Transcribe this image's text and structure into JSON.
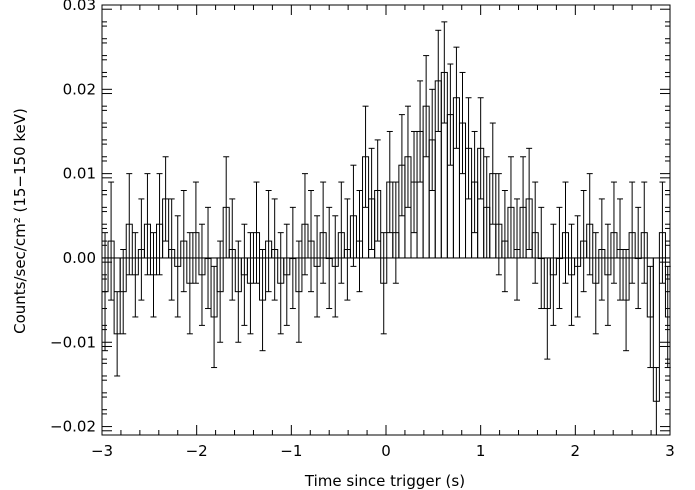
{
  "chart_data": {
    "type": "histogram-step-with-errorbars",
    "xlabel": "Time since trigger (s)",
    "ylabel": "Counts/sec/cm² (15−150 keV)",
    "xlim": [
      -3,
      3
    ],
    "ylim": [
      -0.021,
      0.03
    ],
    "bin_width": 0.064,
    "zero_line": true,
    "grid": false,
    "x_ticks": [
      {
        "value": -3,
        "label": "−3"
      },
      {
        "value": -2,
        "label": "−2"
      },
      {
        "value": -1,
        "label": "−1"
      },
      {
        "value": 0,
        "label": "0"
      },
      {
        "value": 1,
        "label": "1"
      },
      {
        "value": 2,
        "label": "2"
      },
      {
        "value": 3,
        "label": "3"
      }
    ],
    "y_ticks": [
      {
        "value": -0.02,
        "label": "−0.02"
      },
      {
        "value": -0.01,
        "label": "−0.01"
      },
      {
        "value": 0.0,
        "label": "0.00"
      },
      {
        "value": 0.01,
        "label": "0.01"
      },
      {
        "value": 0.02,
        "label": "0.02"
      },
      {
        "value": 0.03,
        "label": "0.03"
      }
    ],
    "x_start": -3.0,
    "values": [
      -0.004,
      0.002,
      -0.009,
      -0.004,
      0.004,
      -0.002,
      0.001,
      0.004,
      -0.002,
      0.004,
      0.007,
      0.001,
      -0.001,
      0.002,
      -0.003,
      0.003,
      -0.002,
      0.0,
      -0.007,
      -0.004,
      0.006,
      0.001,
      -0.004,
      -0.002,
      -0.003,
      0.003,
      -0.005,
      0.002,
      0.001,
      -0.003,
      -0.002,
      0.0,
      -0.004,
      0.004,
      0.002,
      -0.001,
      0.003,
      0.0,
      -0.001,
      0.003,
      0.001,
      0.005,
      0.002,
      0.012,
      0.007,
      0.008,
      -0.003,
      0.009,
      0.003,
      0.011,
      0.012,
      0.009,
      0.015,
      0.018,
      0.014,
      0.021,
      0.022,
      0.017,
      0.019,
      0.016,
      0.013,
      0.009,
      0.013,
      0.006,
      0.01,
      0.004,
      0.002,
      0.006,
      0.001,
      0.006,
      0.007,
      0.003,
      0.0,
      -0.006,
      -0.002,
      0.0,
      0.003,
      -0.002,
      -0.001,
      0.002,
      0.004,
      -0.003,
      0.001,
      -0.002,
      0.003,
      0.001,
      -0.005,
      0.003,
      0.0,
      0.003,
      -0.007,
      -0.017,
      0.003,
      -0.007,
      0.008,
      0.003
    ],
    "errors": [
      0.007,
      0.007,
      0.005,
      0.005,
      0.006,
      0.005,
      0.006,
      0.006,
      0.005,
      0.006,
      0.005,
      0.006,
      0.006,
      0.006,
      0.006,
      0.006,
      0.006,
      0.006,
      0.006,
      0.006,
      0.006,
      0.006,
      0.006,
      0.006,
      0.006,
      0.006,
      0.006,
      0.006,
      0.006,
      0.006,
      0.006,
      0.006,
      0.006,
      0.006,
      0.006,
      0.006,
      0.006,
      0.006,
      0.006,
      0.006,
      0.006,
      0.006,
      0.006,
      0.006,
      0.006,
      0.006,
      0.006,
      0.006,
      0.006,
      0.006,
      0.006,
      0.006,
      0.006,
      0.006,
      0.006,
      0.006,
      0.006,
      0.006,
      0.006,
      0.006,
      0.006,
      0.006,
      0.006,
      0.006,
      0.006,
      0.006,
      0.006,
      0.006,
      0.006,
      0.006,
      0.006,
      0.006,
      0.006,
      0.006,
      0.006,
      0.006,
      0.006,
      0.006,
      0.006,
      0.006,
      0.006,
      0.006,
      0.006,
      0.006,
      0.006,
      0.006,
      0.006,
      0.006,
      0.006,
      0.006,
      0.006,
      0.004,
      0.006,
      0.006,
      0.006,
      0.005
    ]
  }
}
